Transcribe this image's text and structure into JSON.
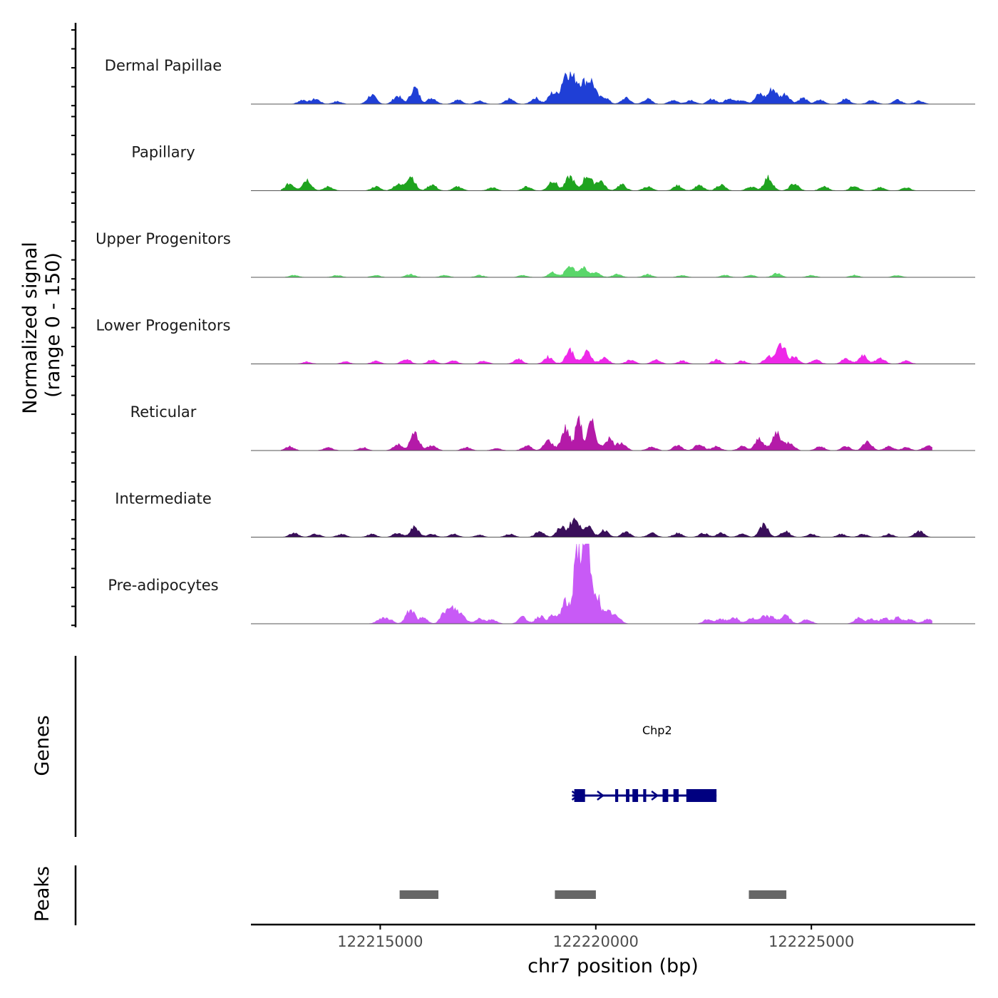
{
  "chart_data": {
    "type": "area",
    "chromosome": "chr7",
    "x_range": [
      122212000,
      122228800
    ],
    "signal_axis": {
      "title_line1": "Normalized signal",
      "title_line2": "(range 0 - 150)",
      "ylim": [
        0,
        150
      ]
    },
    "x_axis": {
      "title": "chr7 position (bp)",
      "ticks": [
        122215000,
        122220000,
        122225000
      ],
      "tick_labels": [
        "122215000",
        "122220000",
        "122225000"
      ]
    },
    "series": [
      {
        "name": "Dermal Papillae",
        "color": "#1f3fd6",
        "peaks": [
          [
            122213200,
            8
          ],
          [
            122213500,
            10
          ],
          [
            122214000,
            5
          ],
          [
            122214800,
            18
          ],
          [
            122215400,
            16
          ],
          [
            122215800,
            32
          ],
          [
            122216200,
            12
          ],
          [
            122216800,
            8
          ],
          [
            122217300,
            6
          ],
          [
            122218000,
            10
          ],
          [
            122218600,
            12
          ],
          [
            122219000,
            22
          ],
          [
            122219300,
            58
          ],
          [
            122219500,
            40
          ],
          [
            122219700,
            34
          ],
          [
            122219900,
            42
          ],
          [
            122220200,
            14
          ],
          [
            122220700,
            12
          ],
          [
            122221200,
            10
          ],
          [
            122221800,
            8
          ],
          [
            122222200,
            8
          ],
          [
            122222700,
            10
          ],
          [
            122223100,
            12
          ],
          [
            122223400,
            8
          ],
          [
            122223800,
            20
          ],
          [
            122224100,
            30
          ],
          [
            122224400,
            20
          ],
          [
            122224800,
            12
          ],
          [
            122225200,
            8
          ],
          [
            122225800,
            10
          ],
          [
            122226400,
            8
          ],
          [
            122227000,
            8
          ],
          [
            122227500,
            6
          ]
        ]
      },
      {
        "name": "Papillary",
        "color": "#1fa31f",
        "peaks": [
          [
            122212900,
            14
          ],
          [
            122213300,
            22
          ],
          [
            122213800,
            8
          ],
          [
            122214900,
            8
          ],
          [
            122215400,
            12
          ],
          [
            122215700,
            30
          ],
          [
            122216200,
            12
          ],
          [
            122216800,
            8
          ],
          [
            122217600,
            6
          ],
          [
            122218400,
            8
          ],
          [
            122219000,
            20
          ],
          [
            122219400,
            28
          ],
          [
            122219800,
            30
          ],
          [
            122220100,
            20
          ],
          [
            122220600,
            12
          ],
          [
            122221200,
            8
          ],
          [
            122221900,
            10
          ],
          [
            122222400,
            10
          ],
          [
            122222900,
            12
          ],
          [
            122223600,
            8
          ],
          [
            122224000,
            26
          ],
          [
            122224600,
            14
          ],
          [
            122225300,
            8
          ],
          [
            122226000,
            10
          ],
          [
            122226600,
            6
          ],
          [
            122227200,
            6
          ]
        ]
      },
      {
        "name": "Upper Progenitors",
        "color": "#5ad66a",
        "peaks": [
          [
            122213000,
            4
          ],
          [
            122214000,
            4
          ],
          [
            122214900,
            4
          ],
          [
            122215700,
            6
          ],
          [
            122216500,
            4
          ],
          [
            122217300,
            4
          ],
          [
            122218300,
            4
          ],
          [
            122219000,
            10
          ],
          [
            122219400,
            24
          ],
          [
            122219700,
            18
          ],
          [
            122220000,
            10
          ],
          [
            122220500,
            6
          ],
          [
            122221200,
            6
          ],
          [
            122222000,
            4
          ],
          [
            122223000,
            4
          ],
          [
            122223600,
            4
          ],
          [
            122224200,
            8
          ],
          [
            122225000,
            4
          ],
          [
            122226000,
            4
          ],
          [
            122227000,
            4
          ]
        ]
      },
      {
        "name": "Lower Progenitors",
        "color": "#ee28e8",
        "peaks": [
          [
            122213300,
            4
          ],
          [
            122214200,
            4
          ],
          [
            122214900,
            6
          ],
          [
            122215600,
            10
          ],
          [
            122216200,
            8
          ],
          [
            122216700,
            6
          ],
          [
            122217400,
            6
          ],
          [
            122218200,
            10
          ],
          [
            122218900,
            14
          ],
          [
            122219400,
            28
          ],
          [
            122219800,
            24
          ],
          [
            122220200,
            12
          ],
          [
            122220800,
            8
          ],
          [
            122221400,
            8
          ],
          [
            122222000,
            6
          ],
          [
            122222800,
            8
          ],
          [
            122223400,
            6
          ],
          [
            122224000,
            14
          ],
          [
            122224300,
            40
          ],
          [
            122224600,
            14
          ],
          [
            122225100,
            8
          ],
          [
            122225800,
            10
          ],
          [
            122226200,
            16
          ],
          [
            122226600,
            12
          ],
          [
            122227200,
            6
          ]
        ]
      },
      {
        "name": "Reticular",
        "color": "#b41aa8",
        "peaks": [
          [
            122212900,
            8
          ],
          [
            122213800,
            6
          ],
          [
            122214600,
            6
          ],
          [
            122215400,
            12
          ],
          [
            122215800,
            34
          ],
          [
            122216200,
            10
          ],
          [
            122217000,
            6
          ],
          [
            122217700,
            4
          ],
          [
            122218400,
            10
          ],
          [
            122218900,
            20
          ],
          [
            122219300,
            44
          ],
          [
            122219600,
            70
          ],
          [
            122219900,
            54
          ],
          [
            122220300,
            24
          ],
          [
            122220600,
            16
          ],
          [
            122221300,
            8
          ],
          [
            122221900,
            10
          ],
          [
            122222400,
            14
          ],
          [
            122222800,
            8
          ],
          [
            122223400,
            8
          ],
          [
            122223800,
            24
          ],
          [
            122224200,
            36
          ],
          [
            122224500,
            16
          ],
          [
            122225200,
            8
          ],
          [
            122225800,
            8
          ],
          [
            122226300,
            18
          ],
          [
            122226800,
            8
          ],
          [
            122227200,
            6
          ],
          [
            122227700,
            10
          ]
        ]
      },
      {
        "name": "Intermediate",
        "color": "#3a0f5a",
        "peaks": [
          [
            122213000,
            8
          ],
          [
            122213500,
            6
          ],
          [
            122214100,
            6
          ],
          [
            122214800,
            6
          ],
          [
            122215400,
            8
          ],
          [
            122215800,
            20
          ],
          [
            122216200,
            6
          ],
          [
            122216700,
            6
          ],
          [
            122217300,
            4
          ],
          [
            122218000,
            6
          ],
          [
            122218700,
            12
          ],
          [
            122219200,
            20
          ],
          [
            122219500,
            36
          ],
          [
            122219800,
            24
          ],
          [
            122220200,
            14
          ],
          [
            122220700,
            10
          ],
          [
            122221300,
            8
          ],
          [
            122221900,
            8
          ],
          [
            122222500,
            8
          ],
          [
            122222900,
            8
          ],
          [
            122223400,
            6
          ],
          [
            122223900,
            24
          ],
          [
            122224400,
            12
          ],
          [
            122225000,
            6
          ],
          [
            122225700,
            6
          ],
          [
            122226200,
            6
          ],
          [
            122226800,
            6
          ],
          [
            122227500,
            12
          ]
        ]
      },
      {
        "name": "Pre-adipocytes",
        "color": "#c85af6",
        "peaks": [
          [
            122215000,
            8
          ],
          [
            122215200,
            8
          ],
          [
            122215700,
            26
          ],
          [
            122216000,
            10
          ],
          [
            122216500,
            20
          ],
          [
            122216700,
            24
          ],
          [
            122216900,
            14
          ],
          [
            122217300,
            10
          ],
          [
            122217600,
            8
          ],
          [
            122218300,
            12
          ],
          [
            122218700,
            14
          ],
          [
            122219000,
            14
          ],
          [
            122219300,
            40
          ],
          [
            122219550,
            143
          ],
          [
            122219700,
            100
          ],
          [
            122219800,
            144
          ],
          [
            122220000,
            60
          ],
          [
            122220300,
            20
          ],
          [
            122220500,
            10
          ],
          [
            122222600,
            8
          ],
          [
            122222900,
            8
          ],
          [
            122223200,
            12
          ],
          [
            122223600,
            10
          ],
          [
            122223900,
            12
          ],
          [
            122224100,
            10
          ],
          [
            122224400,
            16
          ],
          [
            122224900,
            8
          ],
          [
            122226100,
            10
          ],
          [
            122226400,
            8
          ],
          [
            122226700,
            10
          ],
          [
            122227000,
            12
          ],
          [
            122227300,
            8
          ],
          [
            122227700,
            8
          ]
        ]
      }
    ],
    "genes_track": {
      "title": "Genes",
      "color": "#000080",
      "genes": [
        {
          "name": "Chp2",
          "strand": "+",
          "start": 122219450,
          "end": 122222800,
          "exons": [
            [
              122219500,
              122219750
            ],
            [
              122220450,
              122220520
            ],
            [
              122220700,
              122220780
            ],
            [
              122220850,
              122220980
            ],
            [
              122221100,
              122221170
            ],
            [
              122221550,
              122221680
            ],
            [
              122221800,
              122221920
            ],
            [
              122222100,
              122222800
            ]
          ]
        }
      ]
    },
    "peaks_track": {
      "title": "Peaks",
      "color": "#666666",
      "regions": [
        [
          122215450,
          122216350
        ],
        [
          122219050,
          122220000
        ],
        [
          122223550,
          122224420
        ]
      ]
    }
  }
}
